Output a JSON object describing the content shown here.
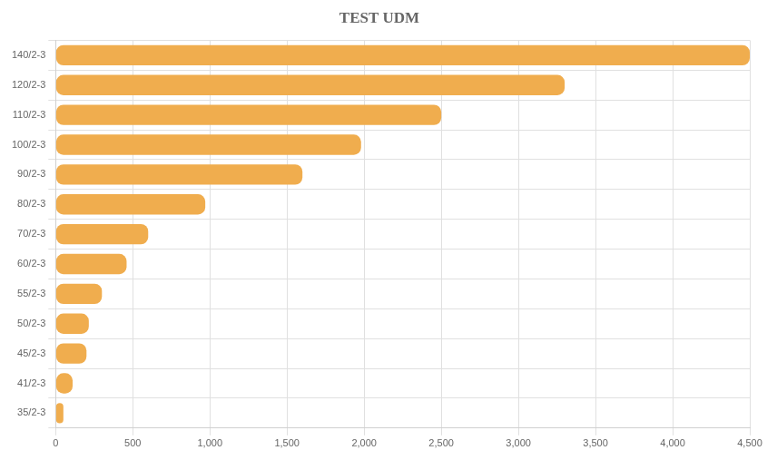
{
  "chart_data": {
    "type": "bar",
    "title": "TEST UDM",
    "orientation": "horizontal",
    "categories": [
      "140/2-3",
      "120/2-3",
      "110/2-3",
      "100/2-3",
      "90/2-3",
      "80/2-3",
      "70/2-3",
      "60/2-3",
      "55/2-3",
      "50/2-3",
      "45/2-3",
      "41/2-3",
      "35/2-3"
    ],
    "values": [
      4500,
      3300,
      2500,
      1980,
      1600,
      970,
      600,
      460,
      300,
      215,
      200,
      110,
      50
    ],
    "color": "#f0ad4e",
    "xlim": [
      0,
      4500
    ],
    "xticks": [
      0,
      500,
      {
        "value": 1000,
        "label": "1,000"
      },
      {
        "value": 1500,
        "label": "1,500"
      },
      {
        "value": 2000,
        "label": "2,000"
      },
      {
        "value": 2500,
        "label": "2,500"
      },
      {
        "value": 3000,
        "label": "3,000"
      },
      {
        "value": 3500,
        "label": "3,500"
      },
      {
        "value": 4000,
        "label": "4,000"
      },
      {
        "value": 4500,
        "label": "4,500"
      }
    ],
    "grid": true
  }
}
